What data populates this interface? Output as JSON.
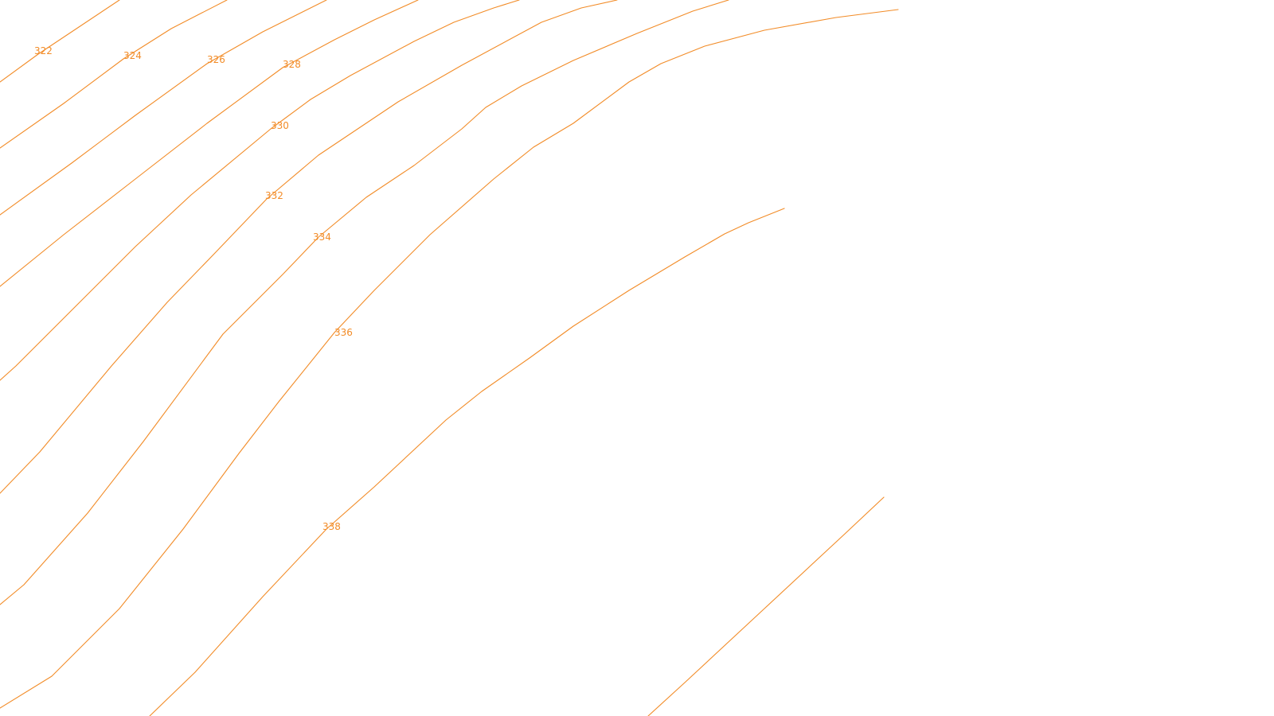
{
  "map": {
    "line_color": "#f28c28",
    "label_color": "#f28c28",
    "background": "#ffffff",
    "contours": [
      {
        "id": "322",
        "label": "322"
      },
      {
        "id": "324",
        "label": "324"
      },
      {
        "id": "326",
        "label": "326"
      },
      {
        "id": "328",
        "label": "328"
      },
      {
        "id": "330",
        "label": "330"
      },
      {
        "id": "332",
        "label": "332"
      },
      {
        "id": "334",
        "label": "334"
      },
      {
        "id": "336",
        "label": "336"
      },
      {
        "id": "338",
        "label": "338"
      },
      {
        "id": "340-a",
        "label": ""
      },
      {
        "id": "340-b",
        "label": ""
      }
    ]
  }
}
